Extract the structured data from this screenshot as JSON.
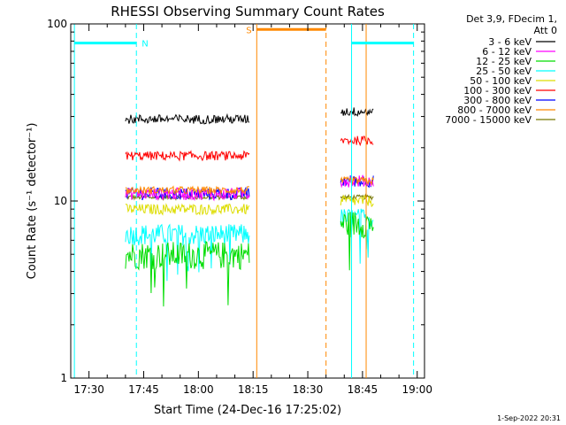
{
  "chart_data": {
    "type": "line",
    "title": "RHESSI Observing Summary Count Rates",
    "xlabel": "Start Time (24-Dec-16 17:25:02)",
    "ylabel": "Count Rate (s⁻¹ detector⁻¹)",
    "y_scale": "log",
    "ylim": [
      1,
      100
    ],
    "xlim": [
      "17:25",
      "19:02"
    ],
    "x_ticks": [
      "17:30",
      "17:45",
      "18:00",
      "18:15",
      "18:30",
      "18:45",
      "19:00"
    ],
    "y_ticks": [
      "1",
      "10",
      "100"
    ],
    "legend_placement": "top-right, outside plot",
    "legend_header": [
      "Det 3,9, FDecim 1,",
      "Att 0"
    ],
    "footer": "1-Sep-2022 20:31",
    "segments": [
      {
        "start": "17:40",
        "end": "18:14"
      },
      {
        "start": "18:39",
        "end": "18:48"
      }
    ],
    "series": [
      {
        "name": "3 - 6 keV",
        "color": "#000000",
        "values": [
          29,
          32
        ]
      },
      {
        "name": "6 - 12 keV",
        "color": "#ff00ff",
        "values": [
          11,
          13
        ]
      },
      {
        "name": "12 - 25 keV",
        "color": "#00dd00",
        "values": [
          5.0,
          7.5
        ]
      },
      {
        "name": "25 - 50 keV",
        "color": "#00ffff",
        "values": [
          6.5,
          8
        ]
      },
      {
        "name": "50 - 100 keV",
        "color": "#dddd00",
        "values": [
          9,
          10
        ]
      },
      {
        "name": "100 - 300 keV",
        "color": "#ff0000",
        "values": [
          18,
          22
        ]
      },
      {
        "name": "300 - 800 keV",
        "color": "#0000ff",
        "values": [
          11,
          13
        ]
      },
      {
        "name": "800 - 7000 keV",
        "color": "#ff8800",
        "values": [
          11.5,
          13
        ]
      },
      {
        "name": "7000 - 15000 keV",
        "color": "#777700",
        "values": [
          10.5,
          10.5
        ]
      }
    ],
    "annotations": [
      {
        "label": "N",
        "color": "#00ffff",
        "start": "17:26",
        "end": "17:43",
        "y": 78
      },
      {
        "label": "S",
        "color": "#ff8800",
        "start": "18:16",
        "end": "18:35",
        "y": 93
      },
      {
        "label": "",
        "color": "#00ffff",
        "start": "18:42",
        "end": "18:59",
        "y": 78
      }
    ],
    "vlines": [
      {
        "t": "17:26",
        "color": "#00ffff",
        "style": "solid"
      },
      {
        "t": "17:43",
        "color": "#00ffff",
        "style": "dash"
      },
      {
        "t": "18:16",
        "color": "#ff8800",
        "style": "solid"
      },
      {
        "t": "18:35",
        "color": "#ff8800",
        "style": "dash"
      },
      {
        "t": "18:42",
        "color": "#00ffff",
        "style": "solid"
      },
      {
        "t": "18:46",
        "color": "#ff8800",
        "style": "solid"
      },
      {
        "t": "18:59",
        "color": "#00ffff",
        "style": "dash"
      }
    ]
  }
}
